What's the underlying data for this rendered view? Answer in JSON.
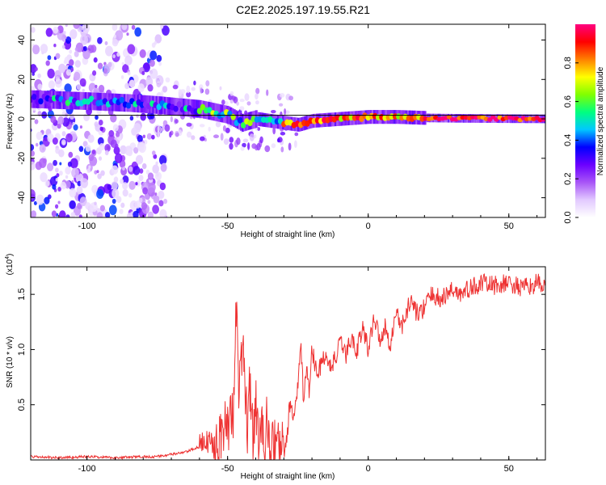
{
  "title": "C2E2.2025.197.19.55.R21",
  "chart_data": [
    {
      "type": "heatmap",
      "xlabel": "Height of straight line (km)",
      "ylabel": "Frequency (Hz)",
      "xlim": [
        -120,
        63
      ],
      "ylim": [
        -50,
        48
      ],
      "x_ticks": [
        -100,
        -50,
        0,
        50
      ],
      "y_ticks": [
        -40,
        -20,
        0,
        20,
        40
      ],
      "colorbar": {
        "label": "Normalized spectral amplitude",
        "range": [
          0,
          1
        ],
        "ticks": [
          "0.0",
          "0.2",
          "0.4",
          "0.6",
          "0.8"
        ],
        "colors": [
          "#ffffff",
          "#e2c9ff",
          "#a855f7",
          "#6b00ff",
          "#0000ff",
          "#00c8ff",
          "#00ff80",
          "#80ff00",
          "#ffff00",
          "#ff8000",
          "#ff0000",
          "#ff0080"
        ]
      },
      "ridge": {
        "x": [
          -120,
          -100,
          -85,
          -75,
          -60,
          -50,
          -45,
          -40,
          -35,
          -30,
          -25,
          -20,
          -10,
          0,
          10,
          20,
          30,
          40,
          50,
          63
        ],
        "y": [
          10,
          9,
          8,
          7,
          5,
          2,
          -2,
          0,
          -1,
          -2,
          -3,
          -1,
          0,
          1,
          1,
          0.5,
          0.3,
          0.2,
          0.1,
          0
        ]
      }
    },
    {
      "type": "line",
      "xlabel": "Height of straight line (km)",
      "ylabel": "SNR (10 * v/v)",
      "y_multiplier": "(x10",
      "y_multiplier_exp": "4",
      "y_multiplier_close": ")",
      "xlim": [
        -120,
        63
      ],
      "ylim": [
        0,
        1.75
      ],
      "x_ticks": [
        -100,
        -50,
        0,
        50
      ],
      "y_ticks": [
        "0.5",
        "1.0",
        "1.5"
      ],
      "series": [
        {
          "color": "#ee3333",
          "x": [
            -120,
            -110,
            -100,
            -90,
            -80,
            -75,
            -70,
            -65,
            -60,
            -55,
            -52,
            -50,
            -48,
            -47,
            -46,
            -45,
            -44,
            -43,
            -42,
            -41,
            -40,
            -39,
            -38,
            -37,
            -36,
            -35,
            -34,
            -33,
            -32,
            -31,
            -30,
            -29,
            -28,
            -27,
            -26,
            -25,
            -24,
            -23,
            -22,
            -21,
            -20,
            -18,
            -16,
            -14,
            -12,
            -10,
            -8,
            -6,
            -4,
            -2,
            0,
            2,
            4,
            6,
            8,
            10,
            12,
            15,
            18,
            20,
            23,
            26,
            30,
            33,
            36,
            40,
            45,
            50,
            55,
            60,
            63
          ],
          "y": [
            0.03,
            0.02,
            0.03,
            0.02,
            0.03,
            0.03,
            0.05,
            0.07,
            0.12,
            0.18,
            0.25,
            0.3,
            0.45,
            1.45,
            0.6,
            0.9,
            0.85,
            0.3,
            0.7,
            0.2,
            0.5,
            0.25,
            0.3,
            0.1,
            0.4,
            0.08,
            0.12,
            0.15,
            0.1,
            0.12,
            0.1,
            0.15,
            0.5,
            0.4,
            0.45,
            0.65,
            1.05,
            0.55,
            0.85,
            0.6,
            1.0,
            0.75,
            0.95,
            0.85,
            0.9,
            1.05,
            0.95,
            1.1,
            1.0,
            1.2,
            1.0,
            1.3,
            1.1,
            1.2,
            1.05,
            1.35,
            1.2,
            1.45,
            1.3,
            1.4,
            1.5,
            1.45,
            1.55,
            1.5,
            1.55,
            1.6,
            1.58,
            1.6,
            1.55,
            1.6,
            1.58
          ]
        }
      ]
    }
  ]
}
